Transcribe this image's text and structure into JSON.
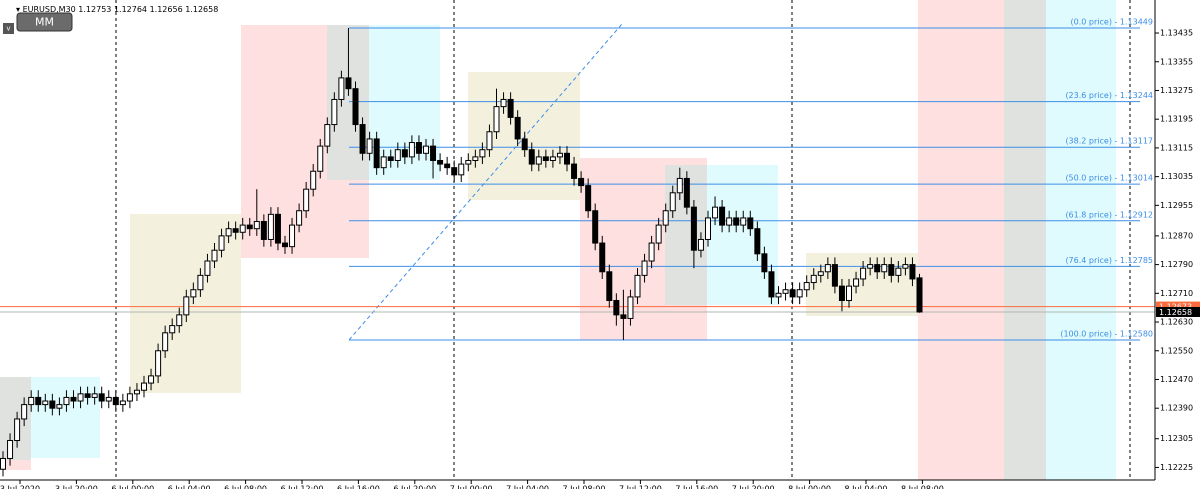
{
  "chart_data": {
    "type": "candlestick",
    "symbol": "EURUSD,M30",
    "candles": [
      [
        1.1222,
        1.1227,
        1.122,
        1.1225
      ],
      [
        1.1225,
        1.1232,
        1.1223,
        1.123
      ],
      [
        1.123,
        1.1238,
        1.1228,
        1.1236
      ],
      [
        1.1236,
        1.1242,
        1.1234,
        1.124
      ],
      [
        1.124,
        1.1244,
        1.1238,
        1.1242
      ],
      [
        1.1242,
        1.1244,
        1.1238,
        1.124
      ],
      [
        1.124,
        1.1243,
        1.1238,
        1.1241
      ],
      [
        1.1241,
        1.1243,
        1.1237,
        1.1239
      ],
      [
        1.1239,
        1.1242,
        1.1237,
        1.124
      ],
      [
        1.124,
        1.1244,
        1.1238,
        1.1242
      ],
      [
        1.1242,
        1.1244,
        1.1239,
        1.1241
      ],
      [
        1.1241,
        1.1245,
        1.1239,
        1.1243
      ],
      [
        1.1243,
        1.1245,
        1.124,
        1.1242
      ],
      [
        1.1242,
        1.1245,
        1.124,
        1.1243
      ],
      [
        1.1243,
        1.1245,
        1.1239,
        1.1241
      ],
      [
        1.1241,
        1.1244,
        1.1239,
        1.1242
      ],
      [
        1.1242,
        1.1244,
        1.1238,
        1.124
      ],
      [
        1.124,
        1.1243,
        1.1238,
        1.1241
      ],
      [
        1.1241,
        1.1245,
        1.1239,
        1.1243
      ],
      [
        1.1243,
        1.1246,
        1.1241,
        1.1244
      ],
      [
        1.1244,
        1.1248,
        1.1242,
        1.1246
      ],
      [
        1.1246,
        1.125,
        1.1244,
        1.1248
      ],
      [
        1.1248,
        1.1257,
        1.1246,
        1.1255
      ],
      [
        1.1255,
        1.1262,
        1.1253,
        1.126
      ],
      [
        1.126,
        1.1264,
        1.1258,
        1.1262
      ],
      [
        1.1262,
        1.1267,
        1.126,
        1.1265
      ],
      [
        1.1265,
        1.1272,
        1.1263,
        1.127
      ],
      [
        1.127,
        1.1274,
        1.1268,
        1.1272
      ],
      [
        1.1272,
        1.1278,
        1.127,
        1.1276
      ],
      [
        1.1276,
        1.1282,
        1.1274,
        1.128
      ],
      [
        1.128,
        1.1285,
        1.1278,
        1.1283
      ],
      [
        1.1283,
        1.1289,
        1.1281,
        1.1287
      ],
      [
        1.1287,
        1.1291,
        1.1285,
        1.1289
      ],
      [
        1.1289,
        1.1291,
        1.1286,
        1.1288
      ],
      [
        1.1288,
        1.1292,
        1.1286,
        1.129
      ],
      [
        1.129,
        1.1292,
        1.1287,
        1.1289
      ],
      [
        1.1289,
        1.13,
        1.1287,
        1.1291
      ],
      [
        1.1291,
        1.1293,
        1.1284,
        1.1286
      ],
      [
        1.1286,
        1.1295,
        1.1284,
        1.1293
      ],
      [
        1.1293,
        1.1295,
        1.1283,
        1.1285
      ],
      [
        1.1285,
        1.1287,
        1.1282,
        1.1284
      ],
      [
        1.1284,
        1.1292,
        1.1282,
        1.129
      ],
      [
        1.129,
        1.1296,
        1.1288,
        1.1294
      ],
      [
        1.1294,
        1.1302,
        1.1292,
        1.13
      ],
      [
        1.13,
        1.1307,
        1.1298,
        1.1305
      ],
      [
        1.1305,
        1.1314,
        1.1303,
        1.1312
      ],
      [
        1.1312,
        1.132,
        1.131,
        1.1318
      ],
      [
        1.1318,
        1.1327,
        1.1316,
        1.1325
      ],
      [
        1.1325,
        1.1333,
        1.1323,
        1.1331
      ],
      [
        1.1331,
        1.13449,
        1.1326,
        1.1328
      ],
      [
        1.1328,
        1.133,
        1.1316,
        1.1318
      ],
      [
        1.1318,
        1.132,
        1.1308,
        1.131
      ],
      [
        1.131,
        1.1316,
        1.1308,
        1.1314
      ],
      [
        1.1314,
        1.1316,
        1.1304,
        1.1306
      ],
      [
        1.1306,
        1.1311,
        1.1304,
        1.1309
      ],
      [
        1.1309,
        1.1311,
        1.1306,
        1.1308
      ],
      [
        1.1308,
        1.1313,
        1.1306,
        1.1311
      ],
      [
        1.1311,
        1.1313,
        1.1307,
        1.1309
      ],
      [
        1.1309,
        1.1315,
        1.1307,
        1.1313
      ],
      [
        1.1313,
        1.1315,
        1.1308,
        1.131
      ],
      [
        1.131,
        1.1314,
        1.1308,
        1.1312
      ],
      [
        1.1312,
        1.1314,
        1.1303,
        1.1308
      ],
      [
        1.1308,
        1.131,
        1.1305,
        1.1307
      ],
      [
        1.1307,
        1.1309,
        1.1304,
        1.1306
      ],
      [
        1.1306,
        1.1308,
        1.1302,
        1.1304
      ],
      [
        1.1304,
        1.1309,
        1.1302,
        1.1307
      ],
      [
        1.1307,
        1.131,
        1.1305,
        1.1308
      ],
      [
        1.1308,
        1.1311,
        1.1306,
        1.1309
      ],
      [
        1.1309,
        1.1313,
        1.1307,
        1.1311
      ],
      [
        1.1311,
        1.1318,
        1.1309,
        1.1316
      ],
      [
        1.1316,
        1.1328,
        1.1314,
        1.1323
      ],
      [
        1.1323,
        1.1327,
        1.1321,
        1.1325
      ],
      [
        1.1325,
        1.1327,
        1.1318,
        1.132
      ],
      [
        1.132,
        1.1322,
        1.1312,
        1.1314
      ],
      [
        1.1314,
        1.1316,
        1.1309,
        1.1311
      ],
      [
        1.1311,
        1.1313,
        1.1305,
        1.1307
      ],
      [
        1.1307,
        1.1311,
        1.1305,
        1.1309
      ],
      [
        1.1309,
        1.1311,
        1.1306,
        1.1308
      ],
      [
        1.1308,
        1.1311,
        1.1306,
        1.1309
      ],
      [
        1.1309,
        1.1312,
        1.1307,
        1.131
      ],
      [
        1.131,
        1.1312,
        1.1305,
        1.1307
      ],
      [
        1.1307,
        1.1309,
        1.1301,
        1.1303
      ],
      [
        1.1303,
        1.1305,
        1.1299,
        1.1301
      ],
      [
        1.1301,
        1.1303,
        1.1292,
        1.1294
      ],
      [
        1.1294,
        1.1296,
        1.1283,
        1.1285
      ],
      [
        1.1285,
        1.1287,
        1.1275,
        1.1277
      ],
      [
        1.1277,
        1.1279,
        1.1267,
        1.1269
      ],
      [
        1.1269,
        1.1271,
        1.1262,
        1.1265
      ],
      [
        1.1265,
        1.1272,
        1.1258,
        1.1264
      ],
      [
        1.1264,
        1.1272,
        1.1262,
        1.127
      ],
      [
        1.127,
        1.1278,
        1.1268,
        1.1276
      ],
      [
        1.1276,
        1.1282,
        1.1274,
        1.128
      ],
      [
        1.128,
        1.1287,
        1.1278,
        1.1285
      ],
      [
        1.1285,
        1.1292,
        1.1283,
        1.129
      ],
      [
        1.129,
        1.1296,
        1.1288,
        1.1294
      ],
      [
        1.1294,
        1.1301,
        1.1292,
        1.1299
      ],
      [
        1.1299,
        1.1306,
        1.1297,
        1.1303
      ],
      [
        1.1303,
        1.1305,
        1.1293,
        1.1295
      ],
      [
        1.1295,
        1.1297,
        1.1278,
        1.1283
      ],
      [
        1.1283,
        1.1288,
        1.1281,
        1.1286
      ],
      [
        1.1286,
        1.1294,
        1.1284,
        1.1292
      ],
      [
        1.1292,
        1.1298,
        1.129,
        1.1295
      ],
      [
        1.1295,
        1.1297,
        1.1288,
        1.129
      ],
      [
        1.129,
        1.1294,
        1.1288,
        1.1292
      ],
      [
        1.1292,
        1.1294,
        1.1288,
        1.129
      ],
      [
        1.129,
        1.1294,
        1.1288,
        1.1292
      ],
      [
        1.1292,
        1.1294,
        1.1287,
        1.1289
      ],
      [
        1.1289,
        1.1291,
        1.128,
        1.1282
      ],
      [
        1.1282,
        1.1284,
        1.1275,
        1.1277
      ],
      [
        1.1277,
        1.1279,
        1.1268,
        1.127
      ],
      [
        1.127,
        1.1273,
        1.1268,
        1.1271
      ],
      [
        1.1271,
        1.1274,
        1.1269,
        1.1272
      ],
      [
        1.1272,
        1.1274,
        1.1268,
        1.127
      ],
      [
        1.127,
        1.1274,
        1.1268,
        1.1272
      ],
      [
        1.1272,
        1.1276,
        1.127,
        1.1274
      ],
      [
        1.1274,
        1.1278,
        1.1272,
        1.1276
      ],
      [
        1.1276,
        1.1279,
        1.1274,
        1.1277
      ],
      [
        1.1277,
        1.1281,
        1.1275,
        1.1279
      ],
      [
        1.1279,
        1.1281,
        1.1271,
        1.1273
      ],
      [
        1.1273,
        1.1275,
        1.1266,
        1.1269
      ],
      [
        1.1269,
        1.1275,
        1.1267,
        1.1273
      ],
      [
        1.1273,
        1.1277,
        1.1271,
        1.1275
      ],
      [
        1.1275,
        1.128,
        1.1273,
        1.1278
      ],
      [
        1.1278,
        1.1281,
        1.1276,
        1.1279
      ],
      [
        1.1279,
        1.1281,
        1.1275,
        1.1277
      ],
      [
        1.1277,
        1.1281,
        1.1275,
        1.1279
      ],
      [
        1.1279,
        1.1281,
        1.1274,
        1.1276
      ],
      [
        1.1276,
        1.128,
        1.1274,
        1.1278
      ],
      [
        1.1278,
        1.1281,
        1.1276,
        1.1279
      ],
      [
        1.1279,
        1.1281,
        1.1273,
        1.1275
      ],
      [
        1.12753,
        1.12764,
        1.12656,
        1.12658
      ]
    ],
    "up_color": "#ffffff",
    "down_color": "#000000",
    "ylim": [
      1.1219,
      1.13527
    ],
    "yticks": [
      1.13435,
      1.13355,
      1.13275,
      1.13195,
      1.13115,
      1.13035,
      1.12955,
      {
        "value": 1.1287,
        "label": "1.12870"
      },
      {
        "value": 1.1279,
        "label": "1.12790"
      },
      {
        "value": 1.1271,
        "label": "1.12710"
      },
      {
        "value": 1.1263,
        "label": "1.12630"
      },
      {
        "value": 1.1255,
        "label": "1.12550"
      },
      {
        "value": 1.1247,
        "label": "1.12470"
      },
      {
        "value": 1.1239,
        "label": "1.12390"
      },
      1.12305,
      1.12225
    ],
    "xtick_labels": [
      "3 Jul 2020",
      "3 Jul 20:00",
      "6 Jul 00:00",
      "6 Jul 04:00",
      "6 Jul 08:00",
      "6 Jul 12:00",
      "6 Jul 16:00",
      "6 Jul 20:00",
      "7 Jul 00:00",
      "7 Jul 04:00",
      "7 Jul 08:00",
      "7 Jul 12:00",
      "7 Jul 16:00",
      "7 Jul 20:00",
      "8 Jul 00:00",
      "8 Jul 04:00",
      "8 Jul 08:00"
    ],
    "fib_levels": [
      {
        "label": "(0.0 price) - 1.13449",
        "value": 1.13449
      },
      {
        "label": "(23.6 price) - 1.13244",
        "value": 1.13244
      },
      {
        "label": "(38.2 price) - 1.13117",
        "value": 1.13117
      },
      {
        "label": "(50.0 price) - 1.13014",
        "value": 1.13014
      },
      {
        "label": "(61.8 price) - 1.12912",
        "value": 1.12912
      },
      {
        "label": "(76.4 price) - 1.12785",
        "value": 1.12785
      },
      {
        "label": "(100.0 price) - 1.12580",
        "value": 1.1258
      }
    ],
    "fib_color": "#3d8ee6",
    "price_lines": [
      {
        "value": 1.12673,
        "color": "#ff6a3d"
      },
      {
        "value": 1.12658,
        "color": "#000000"
      }
    ]
  },
  "buttons": {
    "mm": "MM",
    "v": "v"
  }
}
